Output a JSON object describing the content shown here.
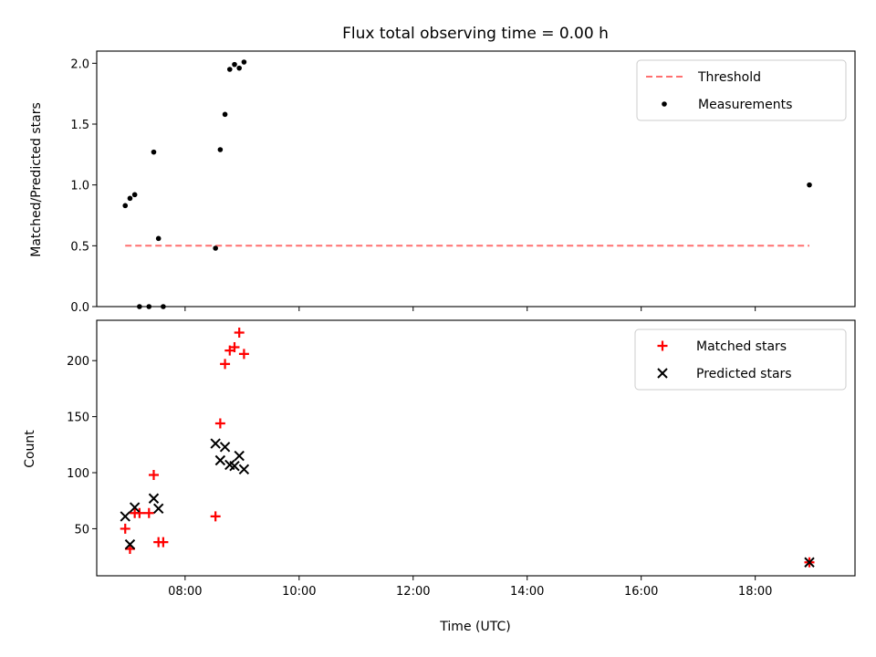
{
  "chart_data": {
    "type": "scatter",
    "title": "Flux total observing time = 0.00 h",
    "xlabel": "Time (UTC)",
    "xlim": [
      "06:27",
      "19:45"
    ],
    "xticks": [
      "08:00",
      "10:00",
      "12:00",
      "14:00",
      "16:00",
      "18:00"
    ],
    "panels": [
      {
        "ylabel": "Matched/Predicted stars",
        "ylim": [
          0,
          2.1
        ],
        "yticks": [
          "0.0",
          "0.5",
          "1.0",
          "1.5",
          "2.0"
        ],
        "legend_position": "upper right",
        "series": [
          {
            "name": "Threshold",
            "kind": "line",
            "style": "dashed",
            "color": "#ff7070",
            "points": [
              {
                "x": "06:57",
                "y": 0.5
              },
              {
                "x": "18:57",
                "y": 0.5
              }
            ]
          },
          {
            "name": "Measurements",
            "kind": "scatter",
            "marker": "dot",
            "color": "#000000",
            "points": [
              {
                "x": "06:57",
                "y": 0.83
              },
              {
                "x": "07:02",
                "y": 0.89
              },
              {
                "x": "07:07",
                "y": 0.92
              },
              {
                "x": "07:12",
                "y": 0.0
              },
              {
                "x": "07:22",
                "y": 0.0
              },
              {
                "x": "07:27",
                "y": 1.27
              },
              {
                "x": "07:32",
                "y": 0.56
              },
              {
                "x": "07:37",
                "y": 0.0
              },
              {
                "x": "08:32",
                "y": 0.48
              },
              {
                "x": "08:37",
                "y": 1.29
              },
              {
                "x": "08:42",
                "y": 1.58
              },
              {
                "x": "08:47",
                "y": 1.95
              },
              {
                "x": "08:52",
                "y": 1.99
              },
              {
                "x": "08:57",
                "y": 1.96
              },
              {
                "x": "09:02",
                "y": 2.01
              },
              {
                "x": "18:57",
                "y": 1.0
              }
            ]
          }
        ]
      },
      {
        "ylabel": "Count",
        "ylim": [
          8,
          236
        ],
        "yticks": [
          "50",
          "100",
          "150",
          "200"
        ],
        "legend_position": "upper right",
        "series": [
          {
            "name": "Matched stars",
            "kind": "scatter",
            "marker": "plus",
            "color": "#ff0000",
            "points": [
              {
                "x": "06:57",
                "y": 50
              },
              {
                "x": "07:02",
                "y": 32
              },
              {
                "x": "07:07",
                "y": 64
              },
              {
                "x": "07:12",
                "y": 64
              },
              {
                "x": "07:22",
                "y": 64
              },
              {
                "x": "07:27",
                "y": 98
              },
              {
                "x": "07:32",
                "y": 38
              },
              {
                "x": "07:37",
                "y": 38
              },
              {
                "x": "08:32",
                "y": 61
              },
              {
                "x": "08:37",
                "y": 144
              },
              {
                "x": "08:42",
                "y": 197
              },
              {
                "x": "08:47",
                "y": 209
              },
              {
                "x": "08:52",
                "y": 212
              },
              {
                "x": "08:57",
                "y": 225
              },
              {
                "x": "09:02",
                "y": 206
              },
              {
                "x": "18:57",
                "y": 20
              }
            ]
          },
          {
            "name": "Predicted stars",
            "kind": "scatter",
            "marker": "x",
            "color": "#000000",
            "points": [
              {
                "x": "06:57",
                "y": 61
              },
              {
                "x": "07:02",
                "y": 36
              },
              {
                "x": "07:07",
                "y": 69
              },
              {
                "x": "07:27",
                "y": 77
              },
              {
                "x": "07:32",
                "y": 68
              },
              {
                "x": "08:32",
                "y": 126
              },
              {
                "x": "08:37",
                "y": 111
              },
              {
                "x": "08:42",
                "y": 123
              },
              {
                "x": "08:47",
                "y": 107
              },
              {
                "x": "08:52",
                "y": 106
              },
              {
                "x": "08:57",
                "y": 115
              },
              {
                "x": "09:02",
                "y": 103
              },
              {
                "x": "18:57",
                "y": 20
              }
            ]
          }
        ]
      }
    ]
  }
}
